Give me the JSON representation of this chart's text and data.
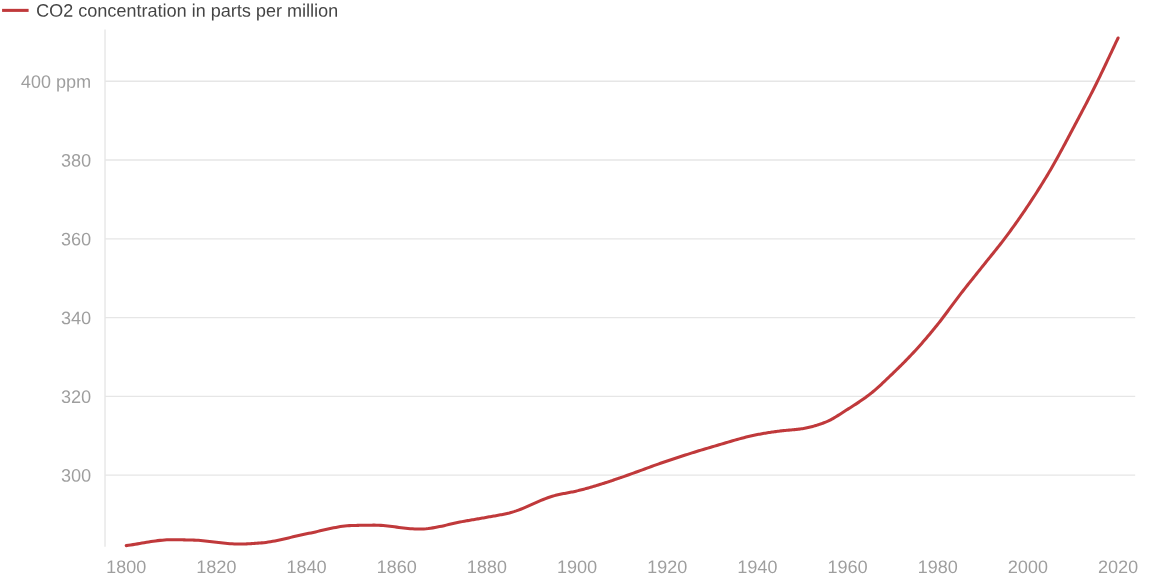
{
  "chart_data": {
    "type": "line",
    "x": [
      1800,
      1810,
      1815,
      1825,
      1830,
      1840,
      1850,
      1855,
      1865,
      1875,
      1880,
      1885,
      1895,
      1900,
      1905,
      1910,
      1920,
      1930,
      1940,
      1945,
      1950,
      1955,
      1960,
      1965,
      1970,
      1975,
      1980,
      1985,
      1990,
      1995,
      2000,
      2005,
      2010,
      2015,
      2020
    ],
    "series": [
      {
        "name": "CO2 concentration in parts per million",
        "color": "#c0393b",
        "values": [
          282.1,
          283.6,
          283.5,
          282.5,
          282.8,
          285.1,
          287.2,
          287.3,
          286.3,
          288.3,
          289.3,
          290.4,
          294.8,
          296.0,
          297.6,
          299.5,
          303.6,
          307.2,
          310.3,
          311.2,
          311.8,
          313.4,
          316.7,
          320.6,
          325.8,
          331.6,
          338.3,
          345.9,
          353.1,
          360.3,
          368.4,
          377.5,
          388.0,
          399.0,
          411.0
        ]
      }
    ],
    "xlim": [
      1795.3,
      2023.8
    ],
    "xticks": [
      1800,
      1820,
      1840,
      1860,
      1880,
      1900,
      1920,
      1940,
      1960,
      1980,
      2000,
      2020
    ],
    "ylim": [
      282,
      413
    ],
    "yticks": [
      300,
      320,
      340,
      360,
      380,
      {
        "value": 400,
        "label": "400 ppm"
      }
    ],
    "grid": "y",
    "legend": "top left",
    "marker": "none",
    "line_style": "solid"
  }
}
